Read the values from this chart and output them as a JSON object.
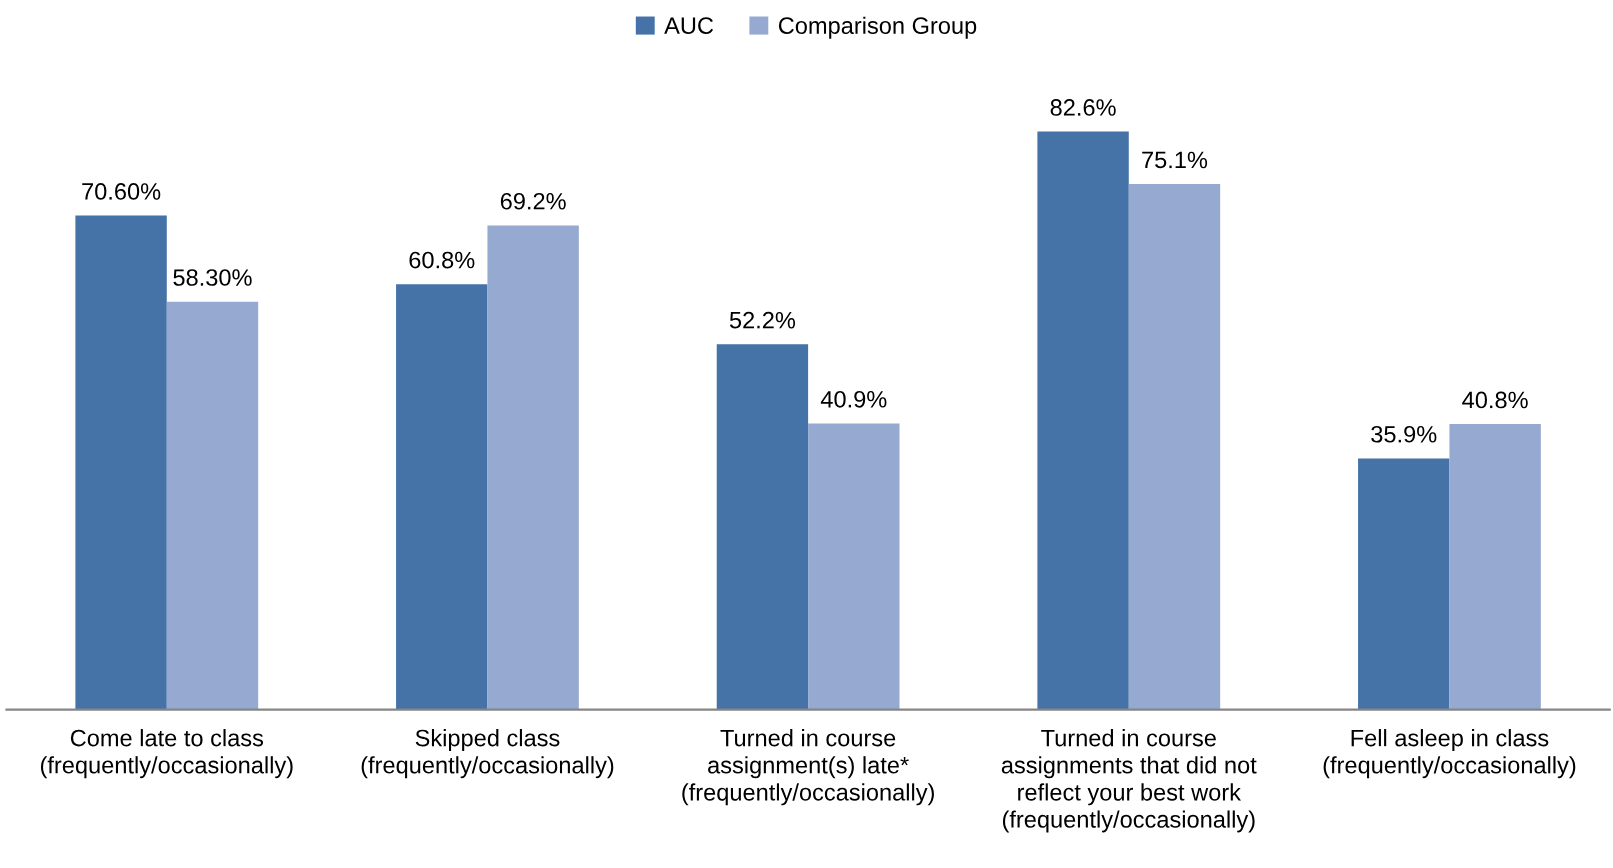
{
  "chart_data": {
    "type": "bar",
    "categories": [
      "Come late to class\n(frequently/occasionally)",
      "Skipped class\n(frequently/occasionally)",
      "Turned in course\nassignment(s) late*\n(frequently/occasionally)",
      "Turned in course\nassignments that did not\nreflect your best work\n(frequently/occasionally)",
      "Fell asleep in class\n(frequently/occasionally)"
    ],
    "series": [
      {
        "name": "AUC",
        "color": "#4572a7",
        "values": [
          70.6,
          60.8,
          52.2,
          82.6,
          35.9
        ],
        "value_labels": [
          "70.60%",
          "60.8%",
          "52.2%",
          "82.6%",
          "35.9%"
        ]
      },
      {
        "name": "Comparison Group",
        "color": "#95a9d1",
        "values": [
          58.3,
          69.2,
          40.9,
          75.1,
          40.8
        ],
        "value_labels": [
          "58.30%",
          "69.2%",
          "40.9%",
          "75.1%",
          "40.8%"
        ]
      }
    ],
    "legend": "top"
  }
}
